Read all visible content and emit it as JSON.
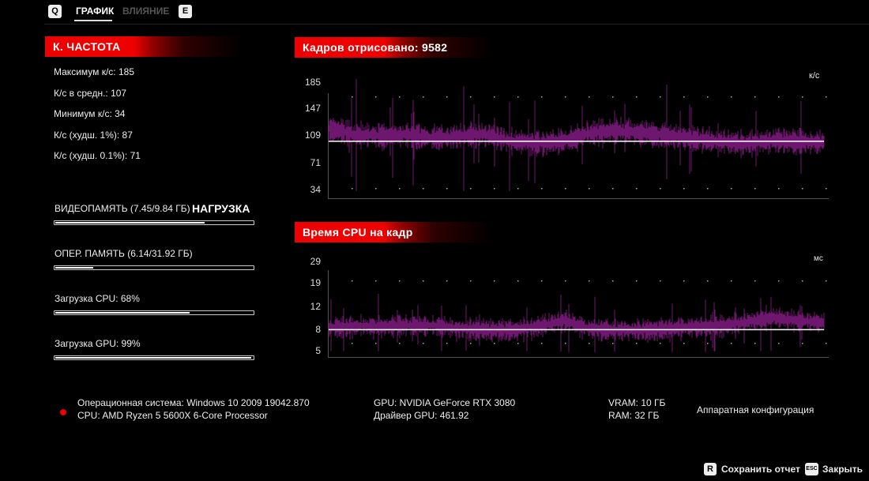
{
  "tabs": {
    "prev_key": "Q",
    "next_key": "E",
    "items": [
      {
        "label": "ГРАФИК",
        "active": true
      },
      {
        "label": "ВЛИЯНИЕ",
        "active": false
      }
    ]
  },
  "fps_panel": {
    "title": "К. ЧАСТОТА",
    "stats": [
      "Максимум к/с: 185",
      "К/с в средн.: 107",
      "Минимум к/с: 34",
      "К/с (худш. 1%): 87",
      "К/с (худш. 0.1%): 71"
    ]
  },
  "load_panel": {
    "title": "НАГРУЗКА",
    "items": [
      {
        "label": "ВИДЕОПАМЯТЬ (7.45/9.84 ГБ)",
        "fraction": 0.757
      },
      {
        "label": "ОПЕР. ПАМЯТЬ (6.14/31.92 ГБ)",
        "fraction": 0.192
      },
      {
        "label": "Загрузка CPU: 68%",
        "fraction": 0.68
      },
      {
        "label": "Загрузка GPU: 99%",
        "fraction": 0.99
      }
    ]
  },
  "colors": {
    "accent": "#e00000",
    "series": "#7a1a7a",
    "avg_line": "#ffffff"
  },
  "chart_data": [
    {
      "type": "line",
      "title": "Кадров отрисовано: 9582",
      "unit": "к/с",
      "ticks": [
        "185",
        "147",
        "109",
        "71",
        "34"
      ],
      "tick_values": [
        185,
        147,
        109,
        71,
        34
      ],
      "ylim": [
        34,
        185
      ],
      "average": 107,
      "segment_means": [
        118,
        110,
        108,
        110,
        104,
        107,
        110,
        100,
        98,
        100,
        112,
        115,
        112,
        108,
        104,
        100,
        97,
        102,
        100,
        98
      ],
      "noise": 12
    },
    {
      "type": "line",
      "title": "Время CPU на кадр",
      "unit": "мс",
      "ticks": [
        "29",
        "19",
        "12",
        "8",
        "5"
      ],
      "tick_values": [
        29,
        19,
        12,
        8,
        5
      ],
      "ylim": [
        5,
        29
      ],
      "average": 8.5,
      "segment_means": [
        8.3,
        8.6,
        8.6,
        8.7,
        8.7,
        8.2,
        8.0,
        8.0,
        8.5,
        9.5,
        8.2,
        8.0,
        7.9,
        8.2,
        8.5,
        8.6,
        9.3,
        10,
        9.5,
        9.2
      ],
      "noise": 1.2
    }
  ],
  "system": {
    "os": "Операционная система: Windows 10 2009 19042.870",
    "cpu": "CPU: AMD Ryzen 5 5600X 6-Core Processor",
    "gpu": "GPU: NVIDIA GeForce RTX 3080",
    "driver": "Драйвер GPU: 461.92",
    "vram": "VRAM: 10 ГБ",
    "ram": "RAM: 32 ГБ",
    "section": "Аппаратная конфигурация"
  },
  "footer": {
    "save_key": "R",
    "save_label": "Сохранить отчет",
    "close_key": "ESC",
    "close_label": "Закрыть"
  }
}
